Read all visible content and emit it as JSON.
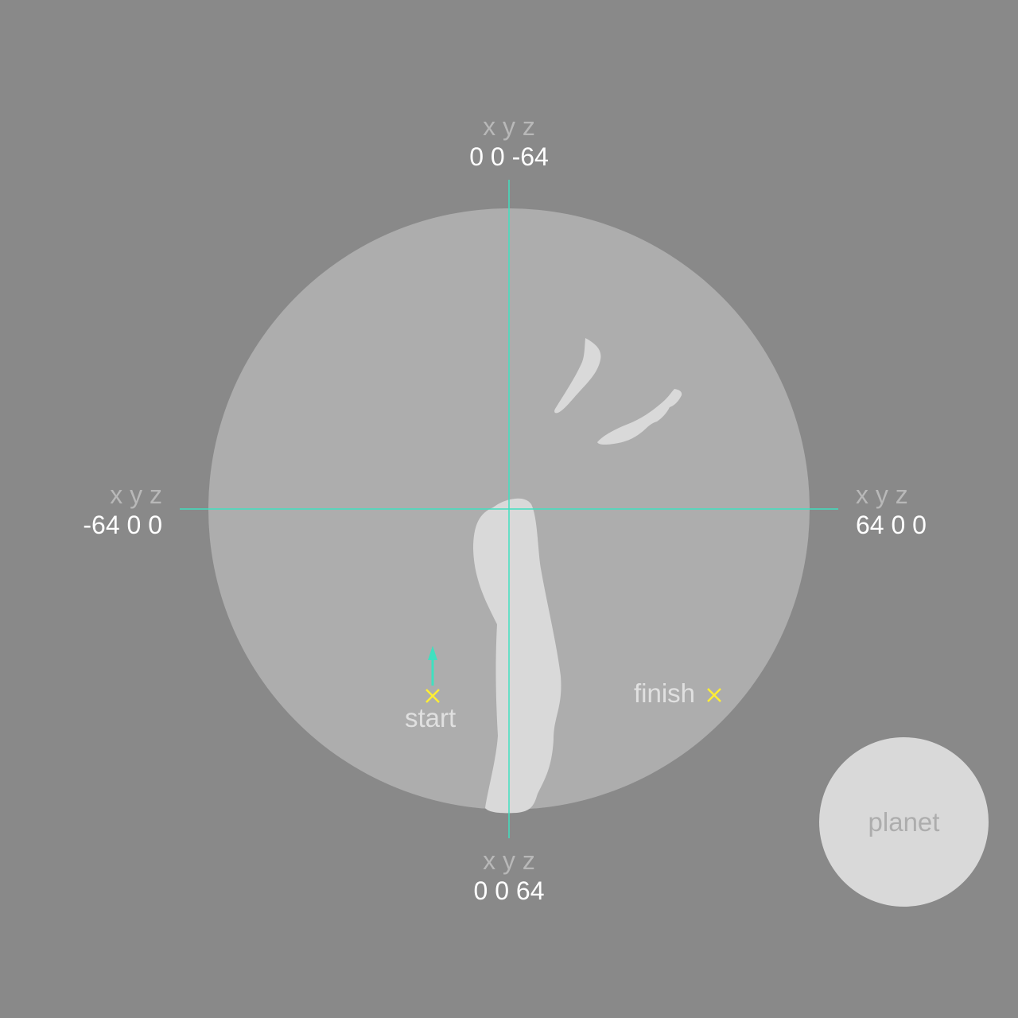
{
  "colors": {
    "background": "#898989",
    "sphere": "#adadad",
    "terrain": "#d9d9d9",
    "axis": "#40e0c0",
    "marker": "#ffee33",
    "heading_arrow": "#40e0c0",
    "label_muted": "#b8b8b8",
    "label_value": "#ffffff"
  },
  "coords": {
    "top": {
      "header": "x y z",
      "value": "0 0 -64"
    },
    "bottom": {
      "header": "x y z",
      "value": "0 0 64"
    },
    "left": {
      "header": "x y z",
      "value": "-64 0 0"
    },
    "right": {
      "header": "x y z",
      "value": "64 0 0"
    }
  },
  "markers": {
    "start": {
      "label": "start",
      "icon": "x-marker-icon"
    },
    "finish": {
      "label": "finish",
      "icon": "x-marker-icon"
    }
  },
  "planet_button": {
    "label": "planet"
  }
}
